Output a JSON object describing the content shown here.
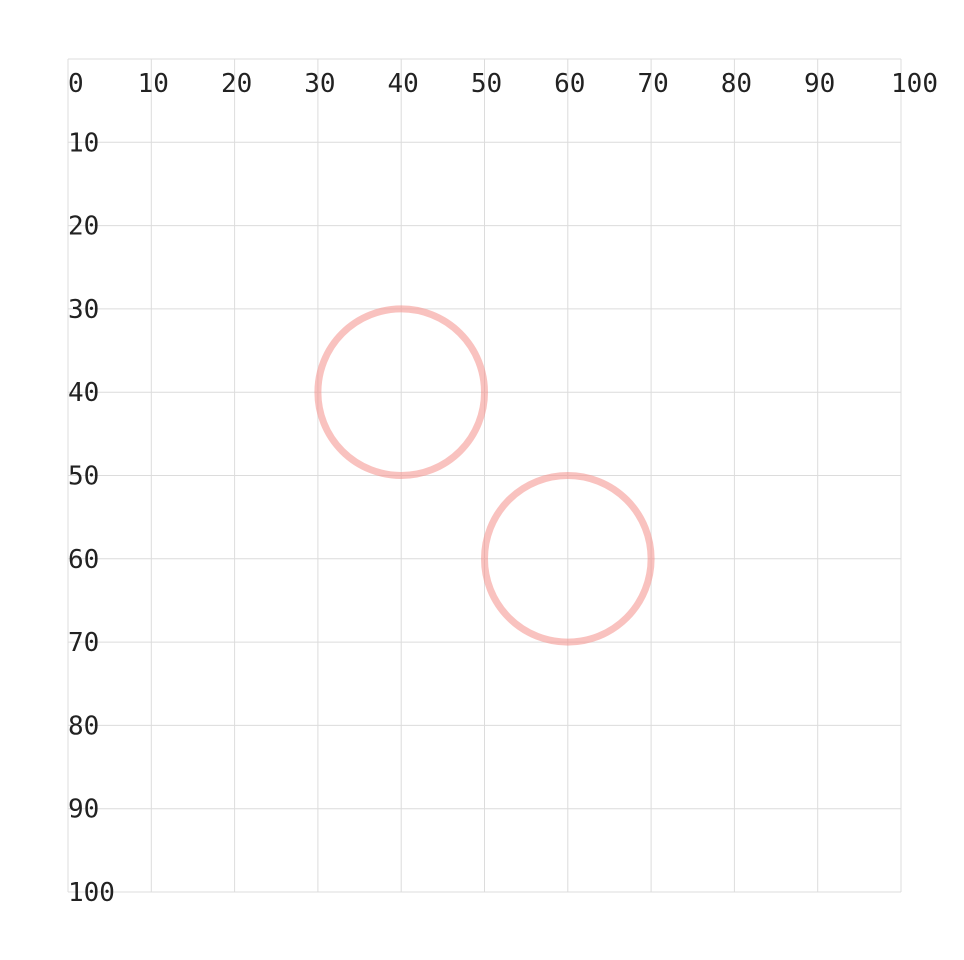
{
  "chart_data": {
    "type": "scatter",
    "title": "",
    "xlabel": "",
    "ylabel": "",
    "xlim": [
      0,
      100
    ],
    "ylim": [
      0,
      100
    ],
    "y_axis_direction": "downward",
    "grid": true,
    "grid_step": 10,
    "x_ticks": [
      "0",
      "10",
      "20",
      "30",
      "40",
      "50",
      "60",
      "70",
      "80",
      "90",
      "100"
    ],
    "y_ticks": [
      "10",
      "20",
      "30",
      "40",
      "50",
      "60",
      "70",
      "80",
      "90",
      "100"
    ],
    "circles": [
      {
        "cx": 40,
        "cy": 40,
        "r": 10
      },
      {
        "cx": 60,
        "cy": 60,
        "r": 10
      }
    ],
    "circle_color": "#f4908a",
    "grid_color": "#dcdcdc"
  }
}
